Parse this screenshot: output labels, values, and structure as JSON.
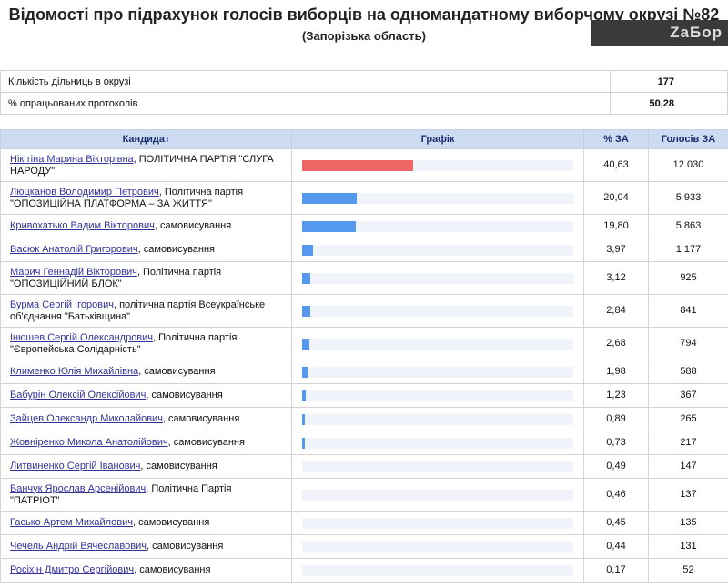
{
  "header": {
    "title": "Відомості про підрахунок голосів виборців на одномандатному виборчому окрузі №82",
    "subtitle": "(Запорізька область)",
    "logo_text": "ZaБор"
  },
  "stats": [
    {
      "label": "Кількість дільниць в окрузі",
      "value": "177"
    },
    {
      "label": "% опрацьованих протоколів",
      "value": "50,28"
    }
  ],
  "table": {
    "headers": {
      "candidate": "Кандидат",
      "chart": "Графік",
      "percent": "% ЗА",
      "votes": "Голосів ЗА"
    },
    "bar_colors": {
      "leader": "#ee6666",
      "other": "#5599ee"
    },
    "rows": [
      {
        "name": "Нікітіна Марина Вікторівна",
        "party": ", ПОЛІТИЧНА ПАРТІЯ \"СЛУГА НАРОДУ\"",
        "percent": "40,63",
        "pct": 40.63,
        "votes": "12 030",
        "leader": true
      },
      {
        "name": "Люцканов Володимир Петрович",
        "party": ", Політична партія \"ОПОЗИЦІЙНА ПЛАТФОРМА – ЗА ЖИТТЯ\"",
        "percent": "20,04",
        "pct": 20.04,
        "votes": "5 933"
      },
      {
        "name": "Кривохатько Вадим Вікторович",
        "party": ", самовисування",
        "percent": "19,80",
        "pct": 19.8,
        "votes": "5 863"
      },
      {
        "name": "Васюк Анатолій Григорович",
        "party": ", самовисування",
        "percent": "3,97",
        "pct": 3.97,
        "votes": "1 177"
      },
      {
        "name": "Марич Геннадій Вікторович",
        "party": ", Політична партія \"ОПОЗИЦІЙНИЙ БЛОК\"",
        "percent": "3,12",
        "pct": 3.12,
        "votes": "925"
      },
      {
        "name": "Бурма Сергій Ігорович",
        "party": ", політична партія Всеукраїнське об'єднання \"Батьківщина\"",
        "percent": "2,84",
        "pct": 2.84,
        "votes": "841"
      },
      {
        "name": "Інюшев Сергій Олександрович",
        "party": ", Політична партія \"Європейська Солідарність\"",
        "percent": "2,68",
        "pct": 2.68,
        "votes": "794"
      },
      {
        "name": "Клименко Юлія Михайлівна",
        "party": ", самовисування",
        "percent": "1,98",
        "pct": 1.98,
        "votes": "588"
      },
      {
        "name": "Бабурін Олексій Олексійович",
        "party": ", самовисування",
        "percent": "1,23",
        "pct": 1.23,
        "votes": "367"
      },
      {
        "name": "Зайцев Олександр Миколайович",
        "party": ", самовисування",
        "percent": "0,89",
        "pct": 0.89,
        "votes": "265"
      },
      {
        "name": "Жовнiренко Микола Анатолійович",
        "party": ", самовисування",
        "percent": "0,73",
        "pct": 0.73,
        "votes": "217"
      },
      {
        "name": "Литвиненко Сергій Іванович",
        "party": ", самовисування",
        "percent": "0,49",
        "pct": 0.49,
        "votes": "147"
      },
      {
        "name": "Банчук Ярослав Арсенійович",
        "party": ", Політична Партія \"ПАТРІОТ\"",
        "percent": "0,46",
        "pct": 0.46,
        "votes": "137"
      },
      {
        "name": "Гасько Артем Михайлович",
        "party": ", самовисування",
        "percent": "0,45",
        "pct": 0.45,
        "votes": "135"
      },
      {
        "name": "Чечель Андрій Вячеславович",
        "party": ", самовисування",
        "percent": "0,44",
        "pct": 0.44,
        "votes": "131"
      },
      {
        "name": "Росіхін Дмитро Сергійович",
        "party": ", самовисування",
        "percent": "0,17",
        "pct": 0.17,
        "votes": "52"
      }
    ]
  }
}
